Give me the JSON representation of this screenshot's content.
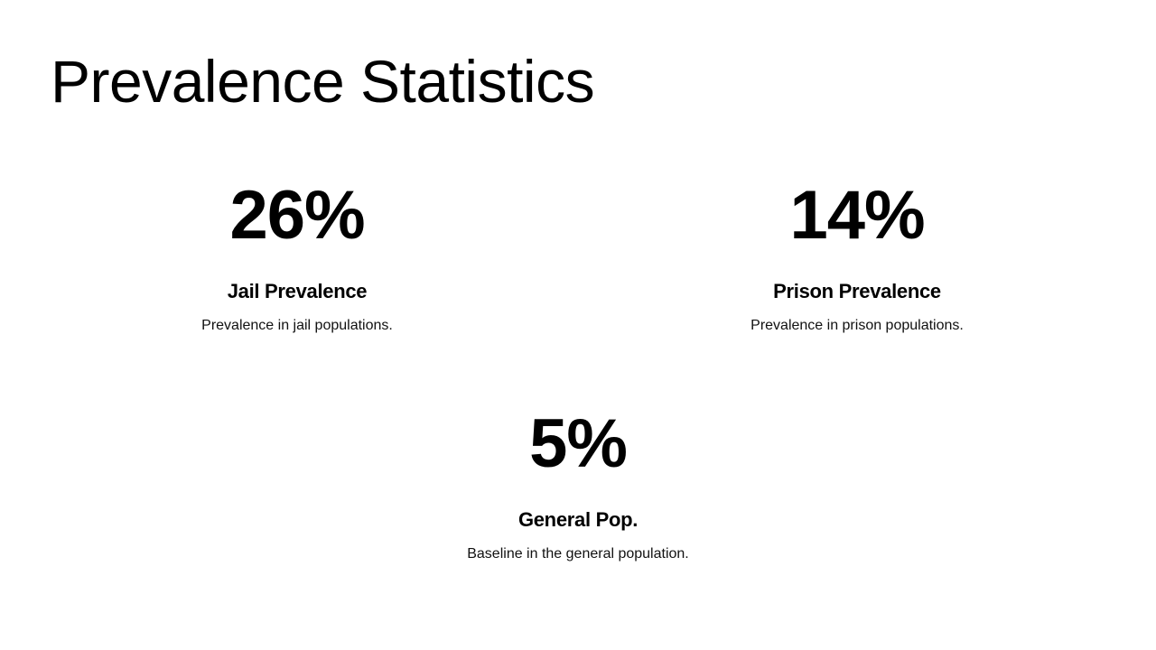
{
  "slide": {
    "title": "Prevalence Statistics",
    "stats": [
      {
        "value": "26%",
        "label": "Jail Prevalence",
        "description": "Prevalence in jail populations."
      },
      {
        "value": "14%",
        "label": "Prison Prevalence",
        "description": "Prevalence in prison populations."
      },
      {
        "value": "5%",
        "label": "General Pop.",
        "description": "Baseline in the general population."
      }
    ]
  },
  "colors": {
    "background": "#ffffff",
    "text": "#000000"
  }
}
